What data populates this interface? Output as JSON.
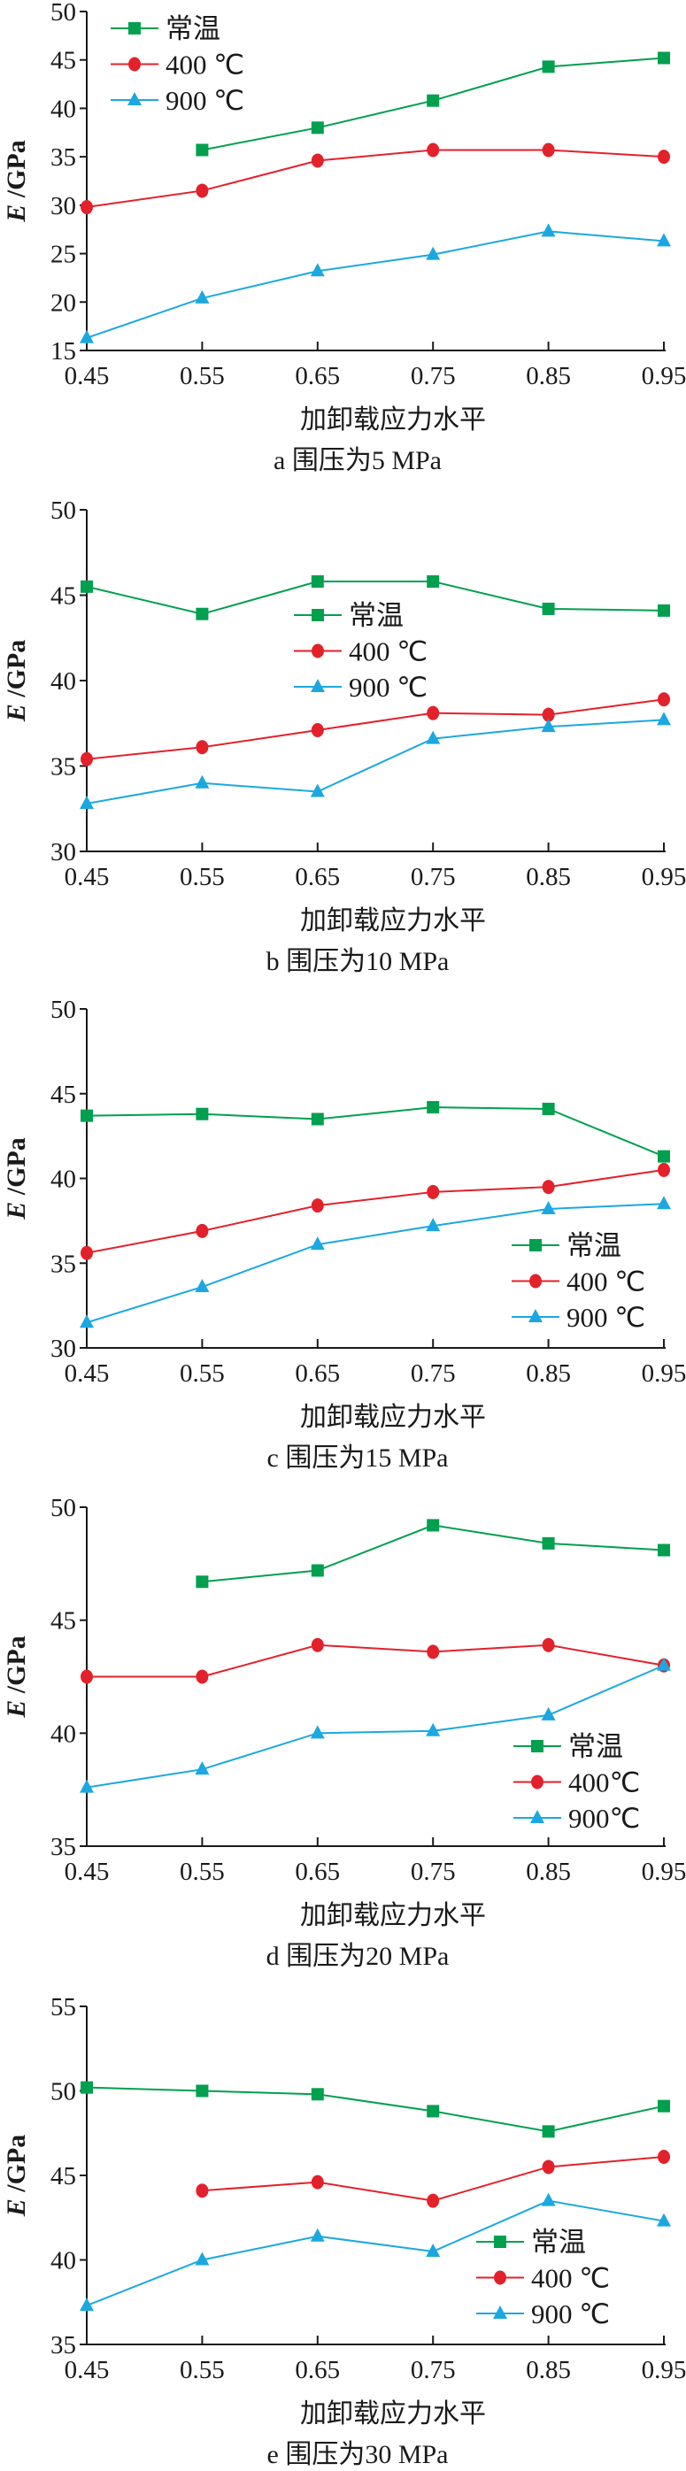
{
  "colors": {
    "series_0": "#00A04E",
    "series_1": "#E3212B",
    "series_2": "#1BA8E0",
    "axis": "#1a1a1a"
  },
  "chart_data": [
    {
      "type": "line",
      "caption": "a  围压为5 MPa",
      "xlabel": "加卸载应力水平",
      "ylabel_italic": "E",
      "ylabel_unit": " /GPa",
      "x": [
        0.45,
        0.55,
        0.65,
        0.75,
        0.85,
        0.95
      ],
      "xticks": [
        "0.45",
        "0.55",
        "0.65",
        "0.75",
        "0.85",
        "0.95"
      ],
      "ylim": [
        15,
        50
      ],
      "yticks": [
        "15",
        "20",
        "25",
        "30",
        "35",
        "40",
        "45",
        "50"
      ],
      "legend_position": "top-left",
      "series": [
        {
          "name": "常温",
          "marker": "square",
          "values": [
            null,
            35.7,
            38.0,
            40.8,
            44.3,
            45.2
          ]
        },
        {
          "name": "400 ℃",
          "marker": "circle",
          "values": [
            29.8,
            31.5,
            34.6,
            35.7,
            35.7,
            35.0
          ]
        },
        {
          "name": "900 ℃",
          "marker": "triangle",
          "values": [
            16.3,
            20.4,
            23.2,
            24.9,
            27.3,
            26.3
          ]
        }
      ]
    },
    {
      "type": "line",
      "caption": "b  围压为10 MPa",
      "xlabel": "加卸载应力水平",
      "ylabel_italic": "E",
      "ylabel_unit": " /GPa",
      "x": [
        0.45,
        0.55,
        0.65,
        0.75,
        0.85,
        0.95
      ],
      "xticks": [
        "0.45",
        "0.55",
        "0.65",
        "0.75",
        "0.85",
        "0.95"
      ],
      "ylim": [
        30,
        50
      ],
      "yticks": [
        "30",
        "35",
        "40",
        "45",
        "50"
      ],
      "legend_position": "center",
      "series": [
        {
          "name": "常温",
          "marker": "square",
          "values": [
            45.5,
            43.9,
            45.8,
            45.8,
            44.2,
            44.1
          ]
        },
        {
          "name": "400 ℃",
          "marker": "circle",
          "values": [
            35.4,
            36.1,
            37.1,
            38.1,
            38.0,
            38.9
          ]
        },
        {
          "name": "900 ℃",
          "marker": "triangle",
          "values": [
            32.8,
            34.0,
            33.5,
            36.6,
            37.3,
            37.7
          ]
        }
      ]
    },
    {
      "type": "line",
      "caption": "c  围压为15 MPa",
      "xlabel": "加卸载应力水平",
      "ylabel_italic": "E",
      "ylabel_unit": " /GPa",
      "x": [
        0.45,
        0.55,
        0.65,
        0.75,
        0.85,
        0.95
      ],
      "xticks": [
        "0.45",
        "0.55",
        "0.65",
        "0.75",
        "0.85",
        "0.95"
      ],
      "ylim": [
        30,
        50
      ],
      "yticks": [
        "30",
        "35",
        "40",
        "45",
        "50"
      ],
      "legend_position": "bottom-right",
      "series": [
        {
          "name": "常温",
          "marker": "square",
          "values": [
            43.7,
            43.8,
            43.5,
            44.2,
            44.1,
            41.3
          ]
        },
        {
          "name": "400 ℃",
          "marker": "circle",
          "values": [
            35.6,
            36.9,
            38.4,
            39.2,
            39.5,
            40.5
          ]
        },
        {
          "name": "900 ℃",
          "marker": "triangle",
          "values": [
            31.5,
            33.6,
            36.1,
            37.2,
            38.2,
            38.5
          ]
        }
      ]
    },
    {
      "type": "line",
      "caption": "d  围压为20 MPa",
      "xlabel": "加卸载应力水平",
      "ylabel_italic": "E",
      "ylabel_unit": " /GPa",
      "x": [
        0.45,
        0.55,
        0.65,
        0.75,
        0.85,
        0.95
      ],
      "xticks": [
        "0.45",
        "0.55",
        "0.65",
        "0.75",
        "0.85",
        "0.95"
      ],
      "ylim": [
        35,
        50
      ],
      "yticks": [
        "35",
        "40",
        "45",
        "50"
      ],
      "legend_position": "bottom-right",
      "series": [
        {
          "name": "常温",
          "marker": "square",
          "values": [
            null,
            46.7,
            47.2,
            49.2,
            48.4,
            48.1
          ]
        },
        {
          "name": "400℃",
          "marker": "circle",
          "values": [
            42.5,
            42.5,
            43.9,
            43.6,
            43.9,
            43.0
          ]
        },
        {
          "name": "900℃",
          "marker": "triangle",
          "values": [
            37.6,
            38.4,
            40.0,
            40.1,
            40.8,
            43.0
          ]
        }
      ]
    },
    {
      "type": "line",
      "caption": "e  围压为30 MPa",
      "xlabel": "加卸载应力水平",
      "ylabel_italic": "E",
      "ylabel_unit": " /GPa",
      "x": [
        0.45,
        0.55,
        0.65,
        0.75,
        0.85,
        0.95
      ],
      "xticks": [
        "0.45",
        "0.55",
        "0.65",
        "0.75",
        "0.85",
        "0.95"
      ],
      "ylim": [
        35,
        55
      ],
      "yticks": [
        "35",
        "40",
        "45",
        "50",
        "55"
      ],
      "legend_position": "bottom-right",
      "series": [
        {
          "name": "常温",
          "marker": "square",
          "values": [
            50.2,
            50.0,
            49.8,
            48.8,
            47.6,
            49.1
          ]
        },
        {
          "name": "400 ℃",
          "marker": "circle",
          "values": [
            null,
            44.1,
            44.6,
            43.5,
            45.5,
            46.1
          ]
        },
        {
          "name": "900 ℃",
          "marker": "triangle",
          "values": [
            37.3,
            40.0,
            41.4,
            40.5,
            43.5,
            42.3
          ]
        }
      ]
    }
  ]
}
